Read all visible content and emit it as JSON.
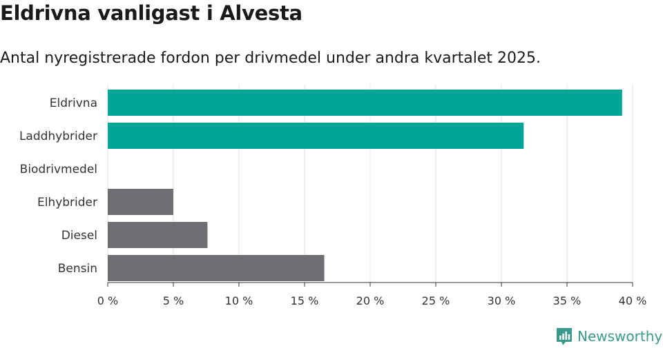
{
  "chart_data": {
    "type": "bar",
    "orientation": "horizontal",
    "title": "Eldrivna vanligast i Alvesta",
    "subtitle": "Antal nyregistrerade fordon per drivmedel under andra kvartalet 2025.",
    "categories": [
      "Eldrivna",
      "Laddhybrider",
      "Biodrivmedel",
      "Elhybrider",
      "Diesel",
      "Bensin"
    ],
    "values": [
      39.2,
      31.7,
      0,
      5.0,
      7.6,
      16.5
    ],
    "bar_colors": [
      "#00a499",
      "#00a499",
      "#00a499",
      "#6e6e73",
      "#6e6e73",
      "#6e6e73"
    ],
    "xlim": [
      0,
      40
    ],
    "xticks": [
      "0 %",
      "5 %",
      "10 %",
      "15 %",
      "20 %",
      "25 %",
      "30 %",
      "35 %",
      "40 %"
    ],
    "grid": true
  },
  "branding": {
    "logo_text": "Newsworthy",
    "logo_color": "#3a9a8c"
  }
}
